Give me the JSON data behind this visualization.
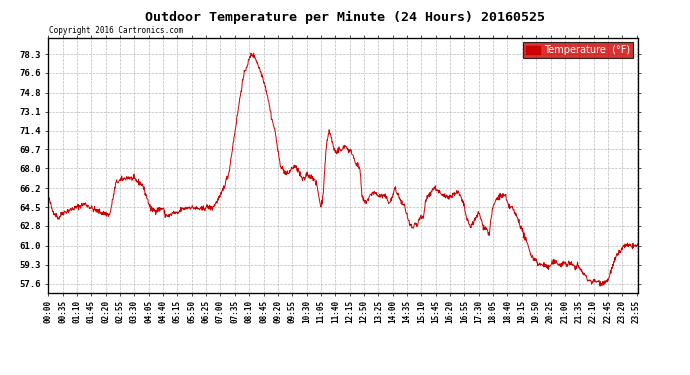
{
  "title": "Outdoor Temperature per Minute (24 Hours) 20160525",
  "copyright_text": "Copyright 2016 Cartronics.com",
  "legend_label": "Temperature  (°F)",
  "line_color": "#cc0000",
  "background_color": "#ffffff",
  "grid_color": "#aaaaaa",
  "yticks": [
    57.6,
    59.3,
    61.0,
    62.8,
    64.5,
    66.2,
    68.0,
    69.7,
    71.4,
    73.1,
    74.8,
    76.6,
    78.3
  ],
  "ylim": [
    56.8,
    79.8
  ],
  "total_minutes": 1440,
  "key_points": [
    [
      0,
      65.5
    ],
    [
      10,
      64.2
    ],
    [
      25,
      63.5
    ],
    [
      35,
      64.0
    ],
    [
      50,
      64.2
    ],
    [
      70,
      64.5
    ],
    [
      90,
      64.8
    ],
    [
      110,
      64.3
    ],
    [
      130,
      64.0
    ],
    [
      150,
      63.8
    ],
    [
      165,
      66.7
    ],
    [
      180,
      67.0
    ],
    [
      195,
      67.2
    ],
    [
      210,
      67.0
    ],
    [
      230,
      66.5
    ],
    [
      250,
      64.3
    ],
    [
      265,
      64.2
    ],
    [
      270,
      64.3
    ],
    [
      280,
      64.4
    ],
    [
      285,
      63.8
    ],
    [
      295,
      63.7
    ],
    [
      305,
      64.0
    ],
    [
      315,
      63.9
    ],
    [
      325,
      64.3
    ],
    [
      335,
      64.4
    ],
    [
      345,
      64.5
    ],
    [
      360,
      64.4
    ],
    [
      375,
      64.3
    ],
    [
      385,
      64.5
    ],
    [
      390,
      64.5
    ],
    [
      400,
      64.4
    ],
    [
      420,
      65.5
    ],
    [
      440,
      67.5
    ],
    [
      450,
      70.0
    ],
    [
      460,
      72.5
    ],
    [
      470,
      75.0
    ],
    [
      475,
      76.0
    ],
    [
      480,
      76.8
    ],
    [
      490,
      77.8
    ],
    [
      495,
      78.3
    ],
    [
      500,
      78.2
    ],
    [
      505,
      78.0
    ],
    [
      510,
      77.5
    ],
    [
      515,
      77.0
    ],
    [
      520,
      76.5
    ],
    [
      525,
      76.0
    ],
    [
      530,
      75.3
    ],
    [
      535,
      74.5
    ],
    [
      540,
      73.5
    ],
    [
      545,
      72.5
    ],
    [
      550,
      71.8
    ],
    [
      555,
      71.0
    ],
    [
      560,
      69.5
    ],
    [
      565,
      68.5
    ],
    [
      570,
      68.0
    ],
    [
      575,
      67.8
    ],
    [
      580,
      67.5
    ],
    [
      585,
      67.5
    ],
    [
      590,
      67.8
    ],
    [
      595,
      68.0
    ],
    [
      600,
      68.2
    ],
    [
      610,
      67.8
    ],
    [
      615,
      67.3
    ],
    [
      620,
      67.0
    ],
    [
      625,
      67.0
    ],
    [
      630,
      67.5
    ],
    [
      640,
      67.2
    ],
    [
      645,
      67.3
    ],
    [
      650,
      66.8
    ],
    [
      655,
      66.5
    ],
    [
      660,
      65.5
    ],
    [
      665,
      64.5
    ],
    [
      670,
      65.5
    ],
    [
      675,
      68.5
    ],
    [
      680,
      70.5
    ],
    [
      685,
      71.4
    ],
    [
      690,
      70.8
    ],
    [
      695,
      70.0
    ],
    [
      700,
      69.5
    ],
    [
      705,
      69.5
    ],
    [
      710,
      69.8
    ],
    [
      715,
      69.5
    ],
    [
      720,
      70.0
    ],
    [
      725,
      70.0
    ],
    [
      730,
      69.8
    ],
    [
      735,
      69.5
    ],
    [
      740,
      69.5
    ],
    [
      745,
      69.0
    ],
    [
      750,
      68.5
    ],
    [
      755,
      68.2
    ],
    [
      760,
      68.0
    ],
    [
      765,
      65.5
    ],
    [
      770,
      65.0
    ],
    [
      775,
      65.0
    ],
    [
      780,
      65.2
    ],
    [
      785,
      65.5
    ],
    [
      790,
      65.8
    ],
    [
      795,
      65.8
    ],
    [
      800,
      65.7
    ],
    [
      805,
      65.5
    ],
    [
      810,
      65.5
    ],
    [
      815,
      65.5
    ],
    [
      820,
      65.5
    ],
    [
      825,
      65.3
    ],
    [
      830,
      65.0
    ],
    [
      835,
      65.0
    ],
    [
      840,
      65.5
    ],
    [
      845,
      66.2
    ],
    [
      850,
      65.8
    ],
    [
      855,
      65.5
    ],
    [
      860,
      65.0
    ],
    [
      870,
      64.5
    ],
    [
      880,
      63.0
    ],
    [
      890,
      62.5
    ],
    [
      895,
      63.0
    ],
    [
      900,
      62.8
    ],
    [
      905,
      63.5
    ],
    [
      910,
      63.5
    ],
    [
      915,
      63.5
    ],
    [
      920,
      65.0
    ],
    [
      925,
      65.5
    ],
    [
      930,
      65.5
    ],
    [
      935,
      66.0
    ],
    [
      940,
      66.2
    ],
    [
      945,
      66.2
    ],
    [
      950,
      66.0
    ],
    [
      955,
      65.8
    ],
    [
      960,
      65.5
    ],
    [
      970,
      65.5
    ],
    [
      975,
      65.5
    ],
    [
      980,
      65.5
    ],
    [
      985,
      65.5
    ],
    [
      990,
      65.8
    ],
    [
      995,
      65.8
    ],
    [
      1000,
      65.8
    ],
    [
      1005,
      65.5
    ],
    [
      1010,
      65.0
    ],
    [
      1015,
      64.5
    ],
    [
      1020,
      63.5
    ],
    [
      1025,
      63.0
    ],
    [
      1030,
      62.8
    ],
    [
      1035,
      63.0
    ],
    [
      1040,
      63.3
    ],
    [
      1050,
      64.0
    ],
    [
      1055,
      63.5
    ],
    [
      1060,
      62.8
    ],
    [
      1070,
      62.5
    ],
    [
      1075,
      62.0
    ],
    [
      1080,
      63.5
    ],
    [
      1085,
      64.5
    ],
    [
      1090,
      65.0
    ],
    [
      1095,
      65.3
    ],
    [
      1100,
      65.5
    ],
    [
      1105,
      65.5
    ],
    [
      1110,
      65.5
    ],
    [
      1115,
      65.5
    ],
    [
      1120,
      64.8
    ],
    [
      1125,
      64.5
    ],
    [
      1130,
      64.5
    ],
    [
      1135,
      64.2
    ],
    [
      1140,
      63.8
    ],
    [
      1145,
      63.5
    ],
    [
      1150,
      63.0
    ],
    [
      1155,
      62.5
    ],
    [
      1160,
      62.0
    ],
    [
      1165,
      61.5
    ],
    [
      1170,
      61.0
    ],
    [
      1175,
      60.5
    ],
    [
      1180,
      60.0
    ],
    [
      1185,
      59.8
    ],
    [
      1190,
      59.8
    ],
    [
      1195,
      59.3
    ],
    [
      1200,
      59.3
    ],
    [
      1210,
      59.3
    ],
    [
      1220,
      59.0
    ],
    [
      1230,
      59.5
    ],
    [
      1240,
      59.5
    ],
    [
      1250,
      59.3
    ],
    [
      1260,
      59.5
    ],
    [
      1265,
      59.3
    ],
    [
      1270,
      59.5
    ],
    [
      1275,
      59.3
    ],
    [
      1280,
      59.3
    ],
    [
      1285,
      59.0
    ],
    [
      1290,
      59.3
    ],
    [
      1295,
      59.0
    ],
    [
      1300,
      58.8
    ],
    [
      1305,
      58.5
    ],
    [
      1310,
      58.3
    ],
    [
      1315,
      58.0
    ],
    [
      1320,
      57.9
    ],
    [
      1325,
      57.8
    ],
    [
      1330,
      57.8
    ],
    [
      1335,
      57.8
    ],
    [
      1340,
      57.8
    ],
    [
      1345,
      57.7
    ],
    [
      1350,
      57.6
    ],
    [
      1355,
      57.8
    ],
    [
      1360,
      57.8
    ],
    [
      1365,
      57.9
    ],
    [
      1370,
      58.5
    ],
    [
      1375,
      59.0
    ],
    [
      1380,
      59.5
    ],
    [
      1385,
      60.0
    ],
    [
      1390,
      60.3
    ],
    [
      1395,
      60.5
    ],
    [
      1400,
      60.8
    ],
    [
      1405,
      61.0
    ],
    [
      1410,
      61.0
    ],
    [
      1415,
      61.0
    ],
    [
      1420,
      61.0
    ],
    [
      1425,
      61.0
    ],
    [
      1430,
      61.0
    ],
    [
      1435,
      61.0
    ],
    [
      1439,
      61.0
    ]
  ]
}
